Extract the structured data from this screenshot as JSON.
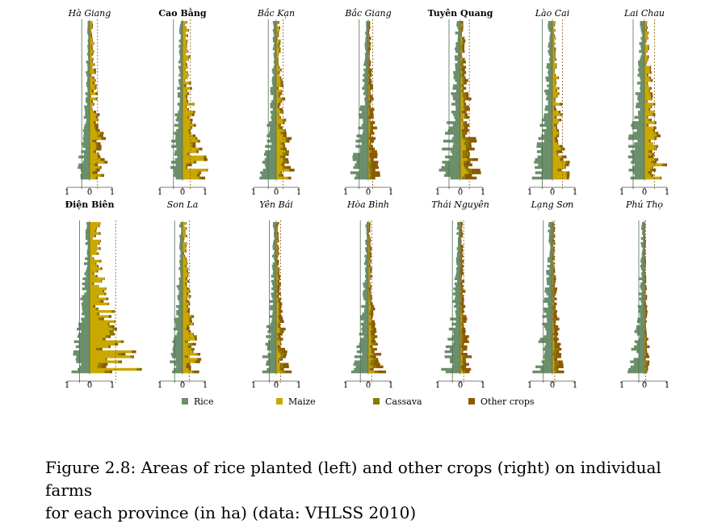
{
  "chart_data": {
    "type": "bar",
    "orientation": "horizontal",
    "description_axis": "Area (ha)",
    "x_ticks": [
      -1,
      0,
      1
    ],
    "x_tick_labels": [
      "1",
      "0",
      "1"
    ],
    "series": [
      {
        "name": "Rice",
        "color": "#6b8e6b"
      },
      {
        "name": "Maize",
        "color": "#c9a800"
      },
      {
        "name": "Cassava",
        "color": "#8a7a00"
      },
      {
        "name": "Other crops",
        "color": "#8b5a00"
      }
    ],
    "panels": [
      {
        "name": "Hà Giang",
        "bold": false,
        "n": 60,
        "rice": 0.25,
        "maize": 0.3,
        "cassava": 0.05,
        "other": 0.12,
        "rice_mean": -0.35,
        "other_mean": 0.35
      },
      {
        "name": "Cao Bằng",
        "bold": true,
        "n": 60,
        "rice": 0.3,
        "maize": 0.45,
        "cassava": 0.05,
        "other": 0.1,
        "rice_mean": -0.4,
        "other_mean": 0.35
      },
      {
        "name": "Bắc Kạn",
        "bold": false,
        "n": 60,
        "rice": 0.3,
        "maize": 0.25,
        "cassava": 0.1,
        "other": 0.12,
        "rice_mean": -0.35,
        "other_mean": 0.3
      },
      {
        "name": "Bắc Giang",
        "bold": false,
        "n": 60,
        "rice": 0.35,
        "maize": 0.05,
        "cassava": 0.05,
        "other": 0.2,
        "rice_mean": -0.4,
        "other_mean": 0.2
      },
      {
        "name": "Tuyên Quang",
        "bold": true,
        "n": 60,
        "rice": 0.45,
        "maize": 0.15,
        "cassava": 0.15,
        "other": 0.25,
        "rice_mean": -0.5,
        "other_mean": 0.4
      },
      {
        "name": "Lào Cai",
        "bold": false,
        "n": 60,
        "rice": 0.4,
        "maize": 0.3,
        "cassava": 0.05,
        "other": 0.1,
        "rice_mean": -0.45,
        "other_mean": 0.45
      },
      {
        "name": "Lai Chau",
        "bold": false,
        "n": 60,
        "rice": 0.45,
        "maize": 0.35,
        "cassava": 0.05,
        "other": 0.1,
        "rice_mean": -0.5,
        "other_mean": 0.45
      },
      {
        "name": "Điện Biên",
        "bold": true,
        "n": 60,
        "rice": 0.4,
        "maize": 0.9,
        "cassava": 0.1,
        "other": 0.1,
        "rice_mean": -0.45,
        "other_mean": 1.15
      },
      {
        "name": "Son La",
        "bold": false,
        "n": 60,
        "rice": 0.3,
        "maize": 0.3,
        "cassava": 0.05,
        "other": 0.1,
        "rice_mean": -0.35,
        "other_mean": 0.3
      },
      {
        "name": "Yên Bái",
        "bold": false,
        "n": 60,
        "rice": 0.3,
        "maize": 0.1,
        "cassava": 0.08,
        "other": 0.15,
        "rice_mean": -0.3,
        "other_mean": 0.2
      },
      {
        "name": "Hòa Bình",
        "bold": false,
        "n": 60,
        "rice": 0.3,
        "maize": 0.1,
        "cassava": 0.08,
        "other": 0.15,
        "rice_mean": -0.35,
        "other_mean": 0.15
      },
      {
        "name": "Thái Nguyên",
        "bold": false,
        "n": 60,
        "rice": 0.35,
        "maize": 0.05,
        "cassava": 0.05,
        "other": 0.2,
        "rice_mean": -0.35,
        "other_mean": 0.15
      },
      {
        "name": "Lạng Sơn",
        "bold": false,
        "n": 60,
        "rice": 0.4,
        "maize": 0.05,
        "cassava": 0.08,
        "other": 0.15,
        "rice_mean": -0.4,
        "other_mean": 0.1
      },
      {
        "name": "Phú Thọ",
        "bold": false,
        "n": 60,
        "rice": 0.3,
        "maize": 0.03,
        "cassava": 0.03,
        "other": 0.08,
        "rice_mean": -0.25,
        "other_mean": 0.05
      }
    ]
  },
  "caption": {
    "line1": "Figure 2.8: Areas of rice planted (left) and other crops (right) on individual farms",
    "line2": "for each province (in ha) (data: VHLSS 2010)"
  }
}
